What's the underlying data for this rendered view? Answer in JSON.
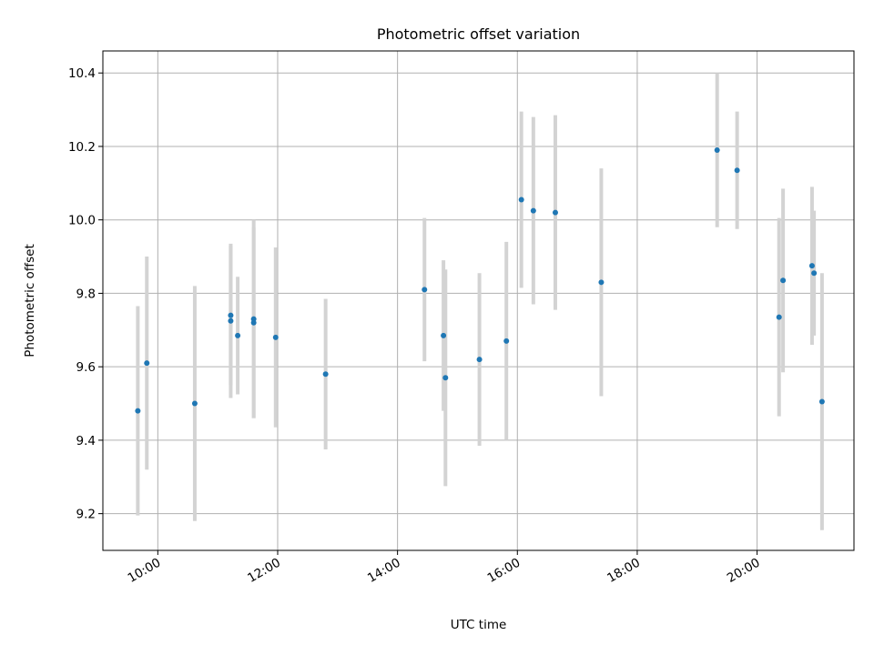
{
  "chart_data": {
    "type": "scatter",
    "title": "Photometric offset variation",
    "xlabel": "UTC time",
    "ylabel": "Photometric offset",
    "x_unit": "UTC time of day",
    "xlim": [
      "09:05",
      "21:37"
    ],
    "ylim": [
      9.1,
      10.46
    ],
    "x_ticks": [
      "10:00",
      "12:00",
      "14:00",
      "16:00",
      "18:00",
      "20:00"
    ],
    "y_ticks": [
      9.2,
      9.4,
      9.6,
      9.8,
      10.0,
      10.2,
      10.4
    ],
    "grid": true,
    "marker_color": "#1f77b4",
    "errorbar_color": "#d3d3d3",
    "points": [
      {
        "t": "09:40",
        "y": 9.48,
        "yerr": 0.285
      },
      {
        "t": "09:49",
        "y": 9.61,
        "yerr": 0.29
      },
      {
        "t": "10:37",
        "y": 9.5,
        "yerr": 0.32
      },
      {
        "t": "11:13",
        "y": 9.74,
        "yerr": 0.19
      },
      {
        "t": "11:13",
        "y": 9.725,
        "yerr": 0.21
      },
      {
        "t": "11:20",
        "y": 9.685,
        "yerr": 0.16
      },
      {
        "t": "11:36",
        "y": 9.73,
        "yerr": 0.27
      },
      {
        "t": "11:36",
        "y": 9.72,
        "yerr": 0.26
      },
      {
        "t": "11:58",
        "y": 9.68,
        "yerr": 0.245
      },
      {
        "t": "12:48",
        "y": 9.58,
        "yerr": 0.205
      },
      {
        "t": "14:27",
        "y": 9.81,
        "yerr": 0.195
      },
      {
        "t": "14:46",
        "y": 9.685,
        "yerr": 0.205
      },
      {
        "t": "14:48",
        "y": 9.57,
        "yerr": 0.295
      },
      {
        "t": "15:22",
        "y": 9.62,
        "yerr": 0.235
      },
      {
        "t": "15:49",
        "y": 9.67,
        "yerr": 0.27
      },
      {
        "t": "16:04",
        "y": 10.055,
        "yerr": 0.24
      },
      {
        "t": "16:16",
        "y": 10.025,
        "yerr": 0.255
      },
      {
        "t": "16:38",
        "y": 10.02,
        "yerr": 0.265
      },
      {
        "t": "17:24",
        "y": 9.83,
        "yerr": 0.31
      },
      {
        "t": "19:20",
        "y": 10.19,
        "yerr": 0.21
      },
      {
        "t": "19:40",
        "y": 10.135,
        "yerr": 0.16
      },
      {
        "t": "20:22",
        "y": 9.735,
        "yerr": 0.27
      },
      {
        "t": "20:26",
        "y": 9.835,
        "yerr": 0.25
      },
      {
        "t": "20:55",
        "y": 9.875,
        "yerr": 0.215
      },
      {
        "t": "20:57",
        "y": 9.855,
        "yerr": 0.17
      },
      {
        "t": "21:05",
        "y": 9.505,
        "yerr": 0.35
      }
    ]
  }
}
